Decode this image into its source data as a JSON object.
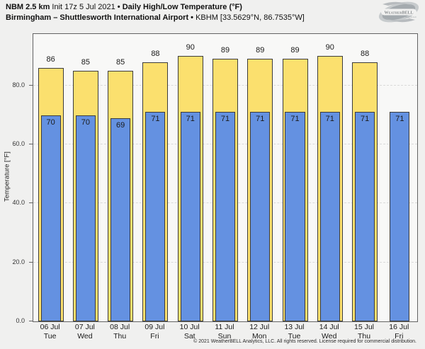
{
  "header": {
    "model": "NBM 2.5 km",
    "init": "Init 17z 5 Jul 2021",
    "separator": "•",
    "product": "Daily High/Low Temperature (°F)",
    "station": "Birmingham – Shuttlesworth International Airport",
    "station_meta": "KBHM [33.5629°N, 86.7535°W]"
  },
  "logo": {
    "brand": "WeatherBELL",
    "sub": "Analytics LLC"
  },
  "chart_data": {
    "type": "bar",
    "title": "NBM 2.5 km Init 17z 5 Jul 2021 • Daily High/Low Temperature (°F)",
    "subtitle": "Birmingham – Shuttlesworth International Airport • KBHM [33.5629°N, 86.7535°W]",
    "xlabel": "",
    "ylabel": "Temperature [°F]",
    "ylim": [
      0,
      97.5
    ],
    "grid_values": [
      20,
      40,
      60,
      80
    ],
    "grid_style": "dashed",
    "legend_position": "none",
    "yticks": [
      {
        "value": 0,
        "label": "0.0"
      },
      {
        "value": 20,
        "label": "20.0"
      },
      {
        "value": 40,
        "label": "40.0"
      },
      {
        "value": 60,
        "label": "60.0"
      },
      {
        "value": 80,
        "label": "80.0"
      }
    ],
    "categories": [
      {
        "date": "06 Jul",
        "day": "Tue"
      },
      {
        "date": "07 Jul",
        "day": "Wed"
      },
      {
        "date": "08 Jul",
        "day": "Thu"
      },
      {
        "date": "09 Jul",
        "day": "Fri"
      },
      {
        "date": "10 Jul",
        "day": "Sat"
      },
      {
        "date": "11 Jul",
        "day": "Sun"
      },
      {
        "date": "12 Jul",
        "day": "Mon"
      },
      {
        "date": "13 Jul",
        "day": "Tue"
      },
      {
        "date": "14 Jul",
        "day": "Wed"
      },
      {
        "date": "15 Jul",
        "day": "Thu"
      },
      {
        "date": "16 Jul",
        "day": "Fri"
      }
    ],
    "series": [
      {
        "name": "Daily High",
        "color": "#fbe06e",
        "values": [
          86,
          85,
          85,
          88,
          90,
          89,
          89,
          89,
          90,
          88,
          null
        ]
      },
      {
        "name": "Daily Low",
        "color": "#6491e1",
        "values": [
          70,
          70,
          69,
          71,
          71,
          71,
          71,
          71,
          71,
          71,
          71
        ]
      }
    ]
  },
  "footer": {
    "copyright": "© 2021 WeatherBELL Analytics, LLC. All rights reserved. License required for commercial distribution."
  },
  "colors": {
    "high_bar": "#fbe06e",
    "low_bar": "#6491e1",
    "bar_border": "#3c3c3c",
    "figure_bg": "#f0f0ef",
    "plot_bg": "#f8f8f7",
    "spine": "#636363",
    "grid": "#d9d9d9"
  }
}
